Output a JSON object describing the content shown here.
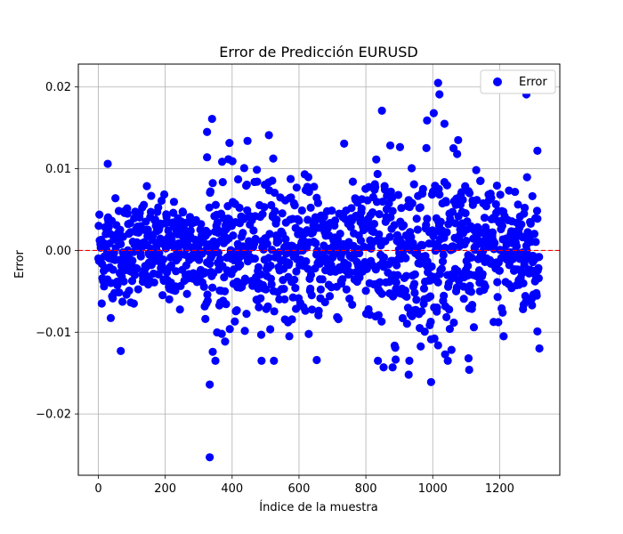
{
  "chart_data": {
    "type": "scatter",
    "title": "Error de Predicción EURUSD",
    "xlabel": "Índice de la muestra",
    "ylabel": "Error",
    "xlim": [
      -60,
      1380
    ],
    "ylim": [
      -0.0275,
      0.0228
    ],
    "xticks": [
      0,
      200,
      400,
      600,
      800,
      1000,
      1200
    ],
    "yticks": [
      -0.02,
      -0.01,
      0.0,
      0.01,
      0.02
    ],
    "ytick_labels": [
      "−0.02",
      "−0.01",
      "0.00",
      "0.01",
      "0.02"
    ],
    "grid": true,
    "legend_position": "top-right",
    "reference_line": {
      "y": 0.0,
      "style": "dashed",
      "color": "#ff0000"
    },
    "colors": {
      "points": "#0000ff",
      "reference": "#ff0000"
    },
    "series": [
      {
        "name": "Error",
        "sample_count": 1320,
        "noise_std": 0.0042,
        "outliers": [
          {
            "x": 333,
            "y": -0.0253
          },
          {
            "x": 333,
            "y": -0.0164
          },
          {
            "x": 340,
            "y": 0.0161
          },
          {
            "x": 325,
            "y": 0.0145
          },
          {
            "x": 510,
            "y": 0.0141
          },
          {
            "x": 848,
            "y": 0.0171
          },
          {
            "x": 1016,
            "y": 0.0205
          },
          {
            "x": 1020,
            "y": 0.0191
          },
          {
            "x": 1003,
            "y": 0.0168
          },
          {
            "x": 1280,
            "y": 0.0191
          },
          {
            "x": 1035,
            "y": 0.0155
          },
          {
            "x": 983,
            "y": 0.0159
          },
          {
            "x": 653,
            "y": -0.0134
          },
          {
            "x": 67,
            "y": -0.0123
          },
          {
            "x": 28,
            "y": 0.0106
          },
          {
            "x": 1109,
            "y": -0.0146
          },
          {
            "x": 1107,
            "y": -0.0132
          },
          {
            "x": 995,
            "y": -0.0161
          },
          {
            "x": 928,
            "y": -0.0152
          },
          {
            "x": 880,
            "y": -0.0143
          },
          {
            "x": 853,
            "y": -0.0143
          },
          {
            "x": 1016,
            "y": -0.0116
          },
          {
            "x": 325,
            "y": 0.0114
          },
          {
            "x": 342,
            "y": -0.0124
          },
          {
            "x": 1313,
            "y": 0.0122
          },
          {
            "x": 1212,
            "y": -0.0105
          },
          {
            "x": 1313,
            "y": -0.0099
          }
        ]
      }
    ]
  }
}
